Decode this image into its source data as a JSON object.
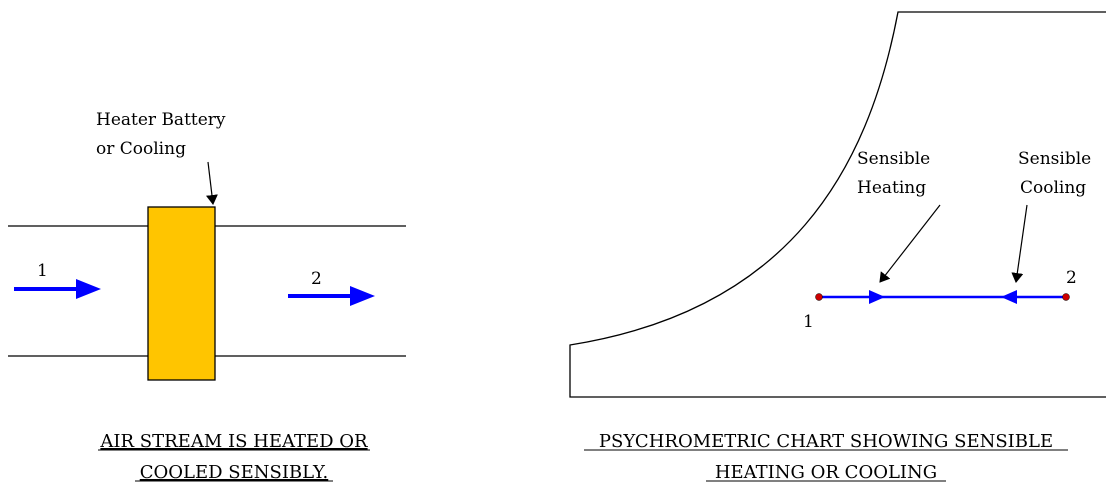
{
  "left_panel": {
    "heater_label_line1": "Heater Battery",
    "heater_label_line2": "or Cooling",
    "inlet_label": "1",
    "outlet_label": "2",
    "caption_line1": "AIR STREAM IS HEATED OR",
    "caption_line2": "COOLED SENSIBLY."
  },
  "right_panel": {
    "heating_label_line1": "Sensible",
    "heating_label_line2": "Heating",
    "cooling_label_line1": "Sensible",
    "cooling_label_line2": "Cooling",
    "point_1_label": "1",
    "point_2_label": "2",
    "caption_line1": "PSYCHROMETRIC CHART SHOWING SENSIBLE",
    "caption_line2": "HEATING OR COOLING"
  },
  "colors": {
    "heater_fill": "#FFC500",
    "flow_arrow": "#0000FF",
    "process_line": "#0000FF",
    "state_point": "#CC0000",
    "outline": "#000000"
  }
}
